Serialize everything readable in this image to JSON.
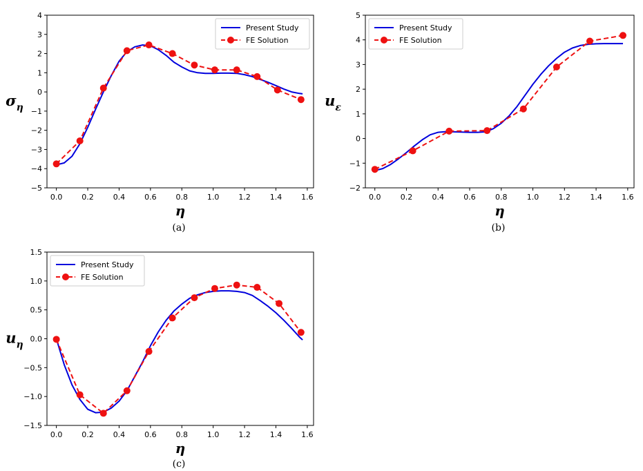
{
  "colors": {
    "present": "#0000dd",
    "fe": "#ee1111",
    "axis": "#000000"
  },
  "chart_data": [
    {
      "id": "a",
      "type": "line",
      "caption": "(a)",
      "xlabel": "η",
      "ylabel_main": "σ",
      "ylabel_sub": "η",
      "xlim": [
        -0.06,
        1.64
      ],
      "ylim": [
        -5,
        4
      ],
      "xticks": [
        0.0,
        0.2,
        0.4,
        0.6,
        0.8,
        1.0,
        1.2,
        1.4,
        1.6
      ],
      "xtick_labels": [
        "0.0",
        "0.2",
        "0.4",
        "0.6",
        "0.8",
        "1.0",
        "1.2",
        "1.4",
        "1.6"
      ],
      "yticks": [
        -5,
        -4,
        -3,
        -2,
        -1,
        0,
        1,
        2,
        3,
        4
      ],
      "ytick_labels": [
        "−5",
        "−4",
        "−3",
        "−2",
        "−1",
        "0",
        "1",
        "2",
        "3",
        "4"
      ],
      "legend": {
        "position": "top-right",
        "entries": [
          "Present Study",
          "FE Solution"
        ]
      },
      "series": [
        {
          "name": "Present Study",
          "style": "solid",
          "x": [
            0.0,
            0.05,
            0.1,
            0.15,
            0.2,
            0.25,
            0.3,
            0.35,
            0.4,
            0.45,
            0.5,
            0.55,
            0.6,
            0.65,
            0.7,
            0.75,
            0.8,
            0.85,
            0.9,
            0.95,
            1.0,
            1.05,
            1.1,
            1.15,
            1.2,
            1.25,
            1.3,
            1.35,
            1.4,
            1.45,
            1.5,
            1.55,
            1.57
          ],
          "y": [
            -3.8,
            -3.7,
            -3.35,
            -2.7,
            -1.85,
            -0.9,
            0.0,
            0.85,
            1.6,
            2.1,
            2.35,
            2.45,
            2.4,
            2.2,
            1.9,
            1.55,
            1.3,
            1.1,
            1.0,
            0.97,
            0.97,
            0.98,
            0.98,
            0.97,
            0.9,
            0.8,
            0.65,
            0.5,
            0.33,
            0.15,
            0.0,
            -0.08,
            -0.1
          ]
        },
        {
          "name": "FE Solution",
          "style": "dashed",
          "markers": true,
          "x": [
            0.0,
            0.15,
            0.3,
            0.45,
            0.59,
            0.74,
            0.88,
            1.01,
            1.15,
            1.28,
            1.41,
            1.56
          ],
          "y": [
            -3.75,
            -2.55,
            0.2,
            2.15,
            2.45,
            2.0,
            1.4,
            1.15,
            1.15,
            0.8,
            0.1,
            -0.4
          ]
        }
      ]
    },
    {
      "id": "b",
      "type": "line",
      "caption": "(b)",
      "xlabel": "η",
      "ylabel_main": "u",
      "ylabel_sub": "ε",
      "xlim": [
        -0.06,
        1.64
      ],
      "ylim": [
        -2,
        5
      ],
      "xticks": [
        0.0,
        0.2,
        0.4,
        0.6,
        0.8,
        1.0,
        1.2,
        1.4,
        1.6
      ],
      "xtick_labels": [
        "0.0",
        "0.2",
        "0.4",
        "0.6",
        "0.8",
        "1.0",
        "1.2",
        "1.4",
        "1.6"
      ],
      "yticks": [
        -2,
        -1,
        0,
        1,
        2,
        3,
        4,
        5
      ],
      "ytick_labels": [
        "−2",
        "−1",
        "0",
        "1",
        "2",
        "3",
        "4",
        "5"
      ],
      "legend": {
        "position": "top-left",
        "entries": [
          "Present Study",
          "FE Solution"
        ]
      },
      "series": [
        {
          "name": "Present Study",
          "style": "solid",
          "x": [
            0.0,
            0.05,
            0.1,
            0.15,
            0.2,
            0.25,
            0.3,
            0.35,
            0.4,
            0.45,
            0.5,
            0.55,
            0.6,
            0.65,
            0.7,
            0.75,
            0.8,
            0.85,
            0.9,
            0.95,
            1.0,
            1.05,
            1.1,
            1.15,
            1.2,
            1.25,
            1.3,
            1.35,
            1.4,
            1.45,
            1.5,
            1.55,
            1.57
          ],
          "y": [
            -1.3,
            -1.22,
            -1.05,
            -0.82,
            -0.57,
            -0.3,
            -0.05,
            0.15,
            0.25,
            0.28,
            0.27,
            0.26,
            0.25,
            0.25,
            0.27,
            0.4,
            0.62,
            0.92,
            1.3,
            1.75,
            2.2,
            2.6,
            2.95,
            3.25,
            3.5,
            3.67,
            3.77,
            3.82,
            3.84,
            3.85,
            3.85,
            3.85,
            3.85
          ]
        },
        {
          "name": "FE Solution",
          "style": "dashed",
          "markers": true,
          "x": [
            0.0,
            0.24,
            0.47,
            0.71,
            0.94,
            1.15,
            1.36,
            1.57
          ],
          "y": [
            -1.25,
            -0.5,
            0.3,
            0.32,
            1.2,
            2.9,
            3.95,
            4.18
          ]
        }
      ]
    },
    {
      "id": "c",
      "type": "line",
      "caption": "(c)",
      "xlabel": "η",
      "ylabel_main": "u",
      "ylabel_sub": "η",
      "xlim": [
        -0.06,
        1.64
      ],
      "ylim": [
        -1.5,
        1.5
      ],
      "xticks": [
        0.0,
        0.2,
        0.4,
        0.6,
        0.8,
        1.0,
        1.2,
        1.4,
        1.6
      ],
      "xtick_labels": [
        "0.0",
        "0.2",
        "0.4",
        "0.6",
        "0.8",
        "1.0",
        "1.2",
        "1.4",
        "1.6"
      ],
      "yticks": [
        -1.5,
        -1.0,
        -0.5,
        0.0,
        0.5,
        1.0,
        1.5
      ],
      "ytick_labels": [
        "−1.5",
        "−1.0",
        "−0.5",
        "0.0",
        "0.5",
        "1.0",
        "1.5"
      ],
      "legend": {
        "position": "top-left",
        "entries": [
          "Present Study",
          "FE Solution"
        ]
      },
      "series": [
        {
          "name": "Present Study",
          "style": "solid",
          "x": [
            0.0,
            0.05,
            0.1,
            0.15,
            0.2,
            0.25,
            0.3,
            0.35,
            0.4,
            0.45,
            0.5,
            0.55,
            0.6,
            0.65,
            0.7,
            0.75,
            0.8,
            0.85,
            0.9,
            0.95,
            1.0,
            1.05,
            1.1,
            1.15,
            1.2,
            1.25,
            1.3,
            1.35,
            1.4,
            1.45,
            1.5,
            1.55,
            1.57
          ],
          "y": [
            0.0,
            -0.45,
            -0.8,
            -1.05,
            -1.22,
            -1.28,
            -1.27,
            -1.2,
            -1.08,
            -0.9,
            -0.65,
            -0.4,
            -0.12,
            0.12,
            0.32,
            0.48,
            0.6,
            0.7,
            0.76,
            0.8,
            0.82,
            0.83,
            0.83,
            0.82,
            0.8,
            0.75,
            0.66,
            0.56,
            0.45,
            0.32,
            0.18,
            0.03,
            -0.02
          ]
        },
        {
          "name": "FE Solution",
          "style": "dashed",
          "markers": true,
          "x": [
            0.0,
            0.15,
            0.3,
            0.45,
            0.59,
            0.74,
            0.88,
            1.01,
            1.15,
            1.28,
            1.42,
            1.56
          ],
          "y": [
            -0.01,
            -0.97,
            -1.29,
            -0.9,
            -0.22,
            0.36,
            0.71,
            0.87,
            0.93,
            0.89,
            0.61,
            0.11
          ]
        }
      ]
    }
  ]
}
